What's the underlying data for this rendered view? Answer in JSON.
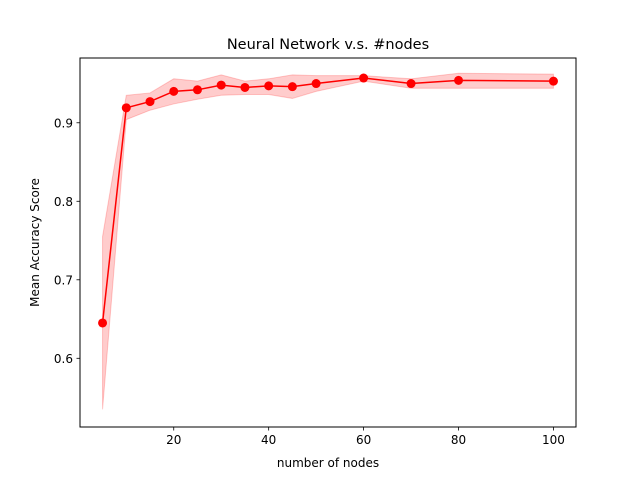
{
  "chart_data": {
    "type": "line",
    "title": "Neural Network v.s. #nodes",
    "xlabel": "number of nodes",
    "ylabel": "Mean Accuracy Score",
    "xlim": [
      0.25,
      104.75
    ],
    "ylim": [
      0.5125,
      0.9825
    ],
    "xticks": [
      20,
      40,
      60,
      80,
      100
    ],
    "yticks": [
      0.6,
      0.7,
      0.8,
      0.9
    ],
    "xtick_labels": [
      "20",
      "40",
      "60",
      "80",
      "100"
    ],
    "ytick_labels": [
      "0.6",
      "0.7",
      "0.8",
      "0.9"
    ],
    "grid": false,
    "series": [
      {
        "color": "#ff0000",
        "band_color": "#ff0000",
        "marker": "circle",
        "x": [
          5,
          10,
          15,
          20,
          25,
          30,
          35,
          40,
          45,
          50,
          60,
          70,
          80,
          100
        ],
        "y": [
          0.645,
          0.919,
          0.927,
          0.94,
          0.942,
          0.948,
          0.945,
          0.947,
          0.946,
          0.95,
          0.957,
          0.95,
          0.954,
          0.953
        ],
        "lower": [
          0.535,
          0.904,
          0.916,
          0.924,
          0.93,
          0.935,
          0.936,
          0.936,
          0.931,
          0.94,
          0.953,
          0.944,
          0.944,
          0.944
        ],
        "upper": [
          0.755,
          0.935,
          0.938,
          0.956,
          0.953,
          0.961,
          0.953,
          0.956,
          0.961,
          0.96,
          0.96,
          0.956,
          0.963,
          0.962
        ]
      }
    ]
  }
}
